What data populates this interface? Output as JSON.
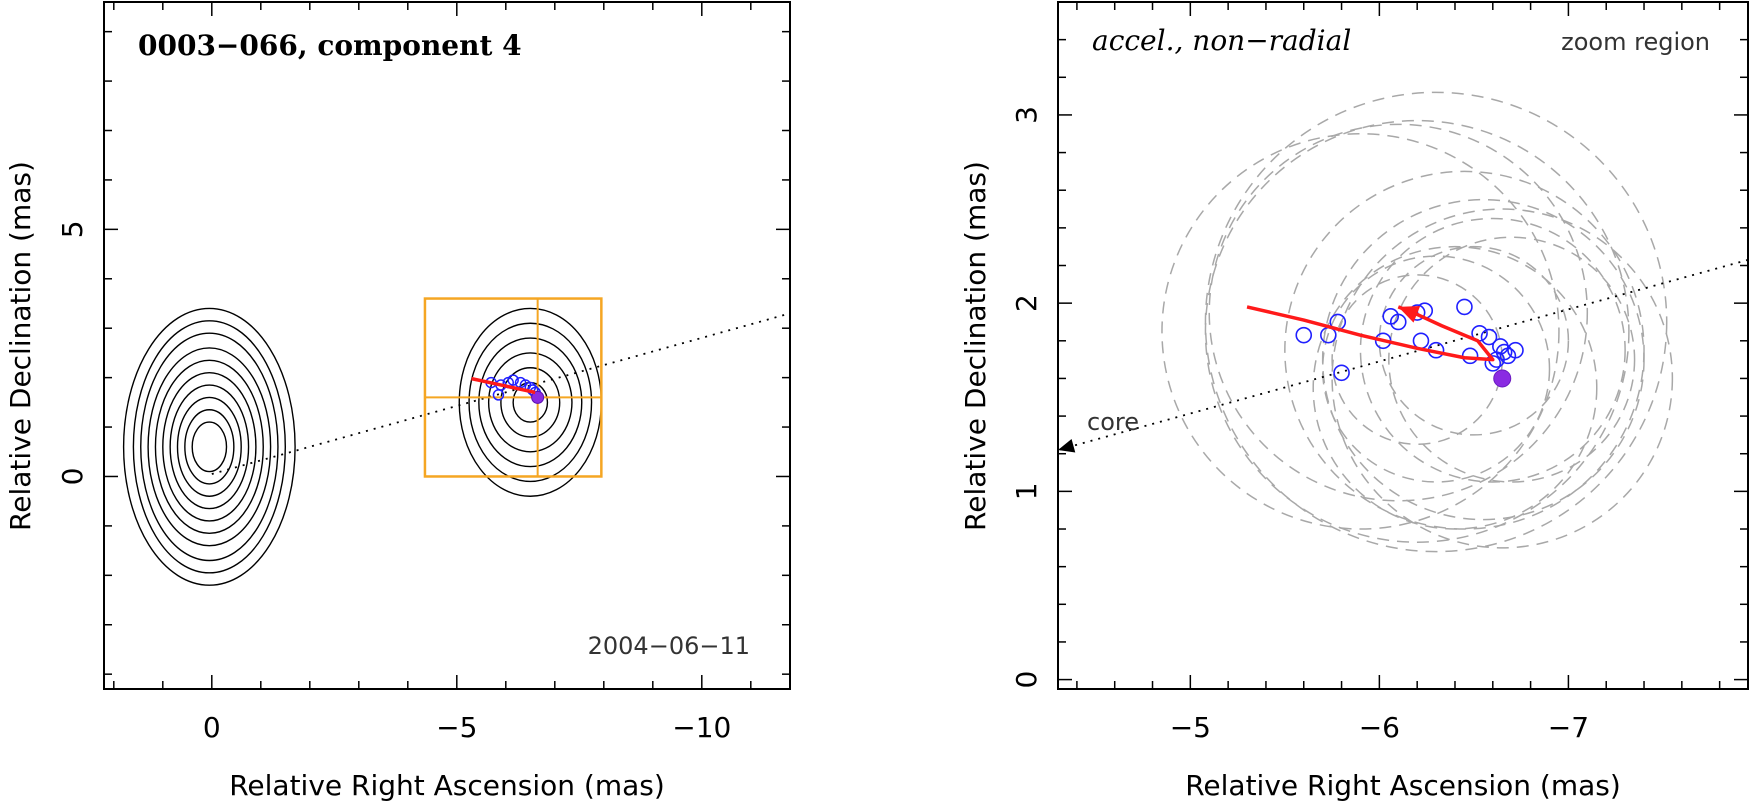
{
  "chart_data": [
    {
      "type": "scatter",
      "panel": "left",
      "title": "0003−066, component 4",
      "annotation": "2004−06−11",
      "xlabel": "Relative Right Ascension (mas)",
      "ylabel": "Relative Declination (mas)",
      "xlim": [
        2.2,
        -11.8
      ],
      "ylim": [
        -4.3,
        9.6
      ],
      "xticks": [
        0,
        -5,
        -10
      ],
      "xtick_labels": [
        "0",
        "−5",
        "−10"
      ],
      "yticks": [
        0,
        5
      ],
      "ytick_labels": [
        "0",
        "5"
      ],
      "zoom_region": {
        "x": [
          -4.35,
          -7.95
        ],
        "y": [
          0.0,
          3.6
        ],
        "cross_x": -6.65,
        "cross_y": 1.6
      },
      "core_line": {
        "from": [
          0,
          0.05
        ],
        "to": [
          -11.8,
          3.3
        ]
      },
      "contour_groups": [
        {
          "x": 0.05,
          "y": 0.6,
          "rx": [
            0.35,
            0.5,
            0.65,
            0.8,
            0.95,
            1.1,
            1.25,
            1.4,
            1.55,
            1.75
          ],
          "ry": [
            0.5,
            0.75,
            1.0,
            1.25,
            1.5,
            1.75,
            2.0,
            2.3,
            2.55,
            2.8
          ]
        },
        {
          "x": -6.5,
          "y": 1.5,
          "rx": [
            0.35,
            0.6,
            0.85,
            1.05,
            1.25,
            1.45
          ],
          "ry": [
            0.4,
            0.7,
            1.0,
            1.3,
            1.6,
            1.9
          ]
        }
      ],
      "component_points": [
        [
          -5.7,
          1.9
        ],
        [
          -5.9,
          1.85
        ],
        [
          -6.05,
          1.9
        ],
        [
          -6.15,
          1.95
        ],
        [
          -6.3,
          1.9
        ],
        [
          -6.4,
          1.85
        ],
        [
          -6.5,
          1.8
        ],
        [
          -6.55,
          1.75
        ],
        [
          -6.6,
          1.7
        ],
        [
          -5.85,
          1.65
        ]
      ],
      "final_point": [
        -6.65,
        1.6
      ],
      "trajectory": [
        [
          -5.3,
          1.98
        ],
        [
          -6.6,
          1.7
        ]
      ]
    },
    {
      "type": "scatter",
      "panel": "right",
      "title": "accel., non−radial",
      "annotation": "zoom region",
      "core_label": "core",
      "xlabel": "Relative Right Ascension (mas)",
      "ylabel": "Relative Declination (mas)",
      "xlim": [
        -4.3,
        -7.95
      ],
      "ylim": [
        -0.05,
        3.6
      ],
      "xticks": [
        -5,
        -6,
        -7
      ],
      "xtick_labels": [
        "−5",
        "−6",
        "−7"
      ],
      "yticks": [
        0,
        1,
        2,
        3
      ],
      "ytick_labels": [
        "0",
        "1",
        "2",
        "3"
      ],
      "core_line": {
        "from": [
          -7.95,
          2.23
        ],
        "to": [
          -4.3,
          1.22
        ]
      },
      "component_points": [
        [
          -5.6,
          1.83
        ],
        [
          -5.73,
          1.83
        ],
        [
          -5.78,
          1.9
        ],
        [
          -5.8,
          1.63
        ],
        [
          -6.02,
          1.8
        ],
        [
          -6.06,
          1.93
        ],
        [
          -6.1,
          1.9
        ],
        [
          -6.2,
          1.95
        ],
        [
          -6.24,
          1.96
        ],
        [
          -6.22,
          1.8
        ],
        [
          -6.3,
          1.75
        ],
        [
          -6.45,
          1.98
        ],
        [
          -6.48,
          1.72
        ],
        [
          -6.53,
          1.84
        ],
        [
          -6.58,
          1.82
        ],
        [
          -6.6,
          1.68
        ],
        [
          -6.62,
          1.7
        ],
        [
          -6.64,
          1.77
        ],
        [
          -6.66,
          1.74
        ],
        [
          -6.68,
          1.72
        ],
        [
          -6.72,
          1.75
        ]
      ],
      "final_point": [
        -6.65,
        1.6
      ],
      "trajectory": [
        [
          -5.3,
          1.98
        ],
        [
          -5.6,
          1.91
        ],
        [
          -5.9,
          1.83
        ],
        [
          -6.2,
          1.76
        ],
        [
          -6.45,
          1.71
        ],
        [
          -6.6,
          1.7
        ],
        [
          -6.52,
          1.8
        ],
        [
          -6.33,
          1.88
        ],
        [
          -6.2,
          1.94
        ],
        [
          -6.1,
          1.98
        ]
      ],
      "error_circles": [
        {
          "x": -6.3,
          "y": 1.9,
          "r": 1.22
        },
        {
          "x": -6.2,
          "y": 1.85,
          "r": 1.12
        },
        {
          "x": -6.1,
          "y": 1.95,
          "r": 1.0
        },
        {
          "x": -6.45,
          "y": 1.75,
          "r": 0.95
        },
        {
          "x": -6.55,
          "y": 1.7,
          "r": 0.85
        },
        {
          "x": -6.6,
          "y": 1.75,
          "r": 0.7
        },
        {
          "x": -6.3,
          "y": 1.65,
          "r": 0.6
        },
        {
          "x": -6.5,
          "y": 1.8,
          "r": 0.5
        },
        {
          "x": -6.2,
          "y": 1.7,
          "r": 0.45
        },
        {
          "x": -6.65,
          "y": 1.6,
          "r": 0.9
        },
        {
          "x": -5.9,
          "y": 1.85,
          "r": 1.05
        },
        {
          "x": -6.7,
          "y": 1.7,
          "r": 0.65
        },
        {
          "x": -6.4,
          "y": 1.55,
          "r": 0.75
        }
      ]
    }
  ]
}
